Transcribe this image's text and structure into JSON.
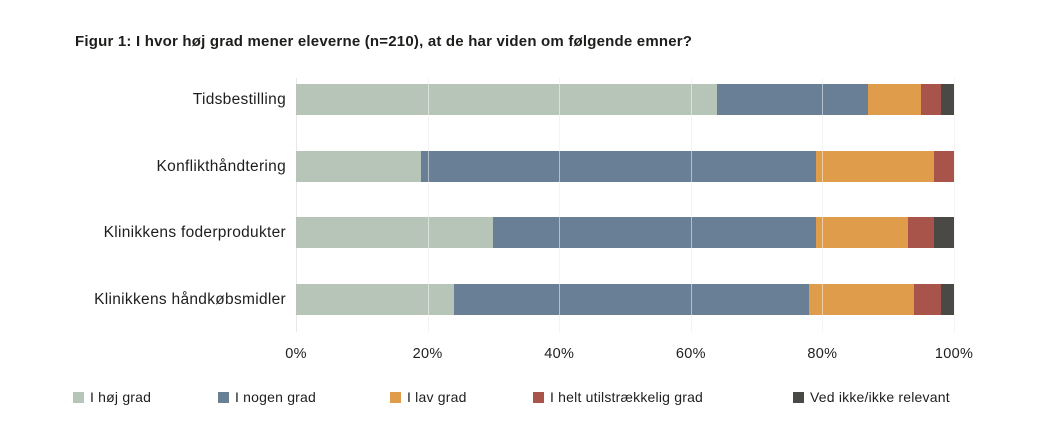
{
  "title": "Figur 1: I hvor høj grad mener eleverne (n=210), at de har viden om følgende emner?",
  "colors": {
    "hoej_grad": "#b7c4b8",
    "nogen_grad": "#697f95",
    "lav_grad": "#df9c4a",
    "utilstraekkelig": "#a9544a",
    "ved_ikke": "#4a4946",
    "gridline": "#e8e8e8",
    "text": "#1e1e1e"
  },
  "chart_data": {
    "type": "bar",
    "orientation": "horizontal",
    "stacked": true,
    "title": "Figur 1: I hvor høj grad mener eleverne (n=210), at de har viden om følgende emner?",
    "categories": [
      "Tidsbestilling",
      "Konflikthåndtering",
      "Klinikkens foderprodukter",
      "Klinikkens håndkøbsmidler"
    ],
    "series": [
      {
        "name": "I høj grad",
        "color": "#b7c4b8",
        "values": [
          64,
          19,
          30,
          24
        ]
      },
      {
        "name": "I nogen grad",
        "color": "#697f95",
        "values": [
          23,
          60,
          49,
          54
        ]
      },
      {
        "name": "I lav grad",
        "color": "#df9c4a",
        "values": [
          8,
          18,
          14,
          16
        ]
      },
      {
        "name": "I helt utilstrækkelig grad",
        "color": "#a9544a",
        "values": [
          3,
          3,
          4,
          4
        ]
      },
      {
        "name": "Ved ikke/ikke relevant",
        "color": "#4a4946",
        "values": [
          2,
          0,
          3,
          2
        ]
      }
    ],
    "x_ticks": [
      "0%",
      "20%",
      "40%",
      "60%",
      "80%",
      "100%"
    ],
    "xlim": [
      0,
      100
    ],
    "grid": true,
    "legend_position": "bottom"
  }
}
